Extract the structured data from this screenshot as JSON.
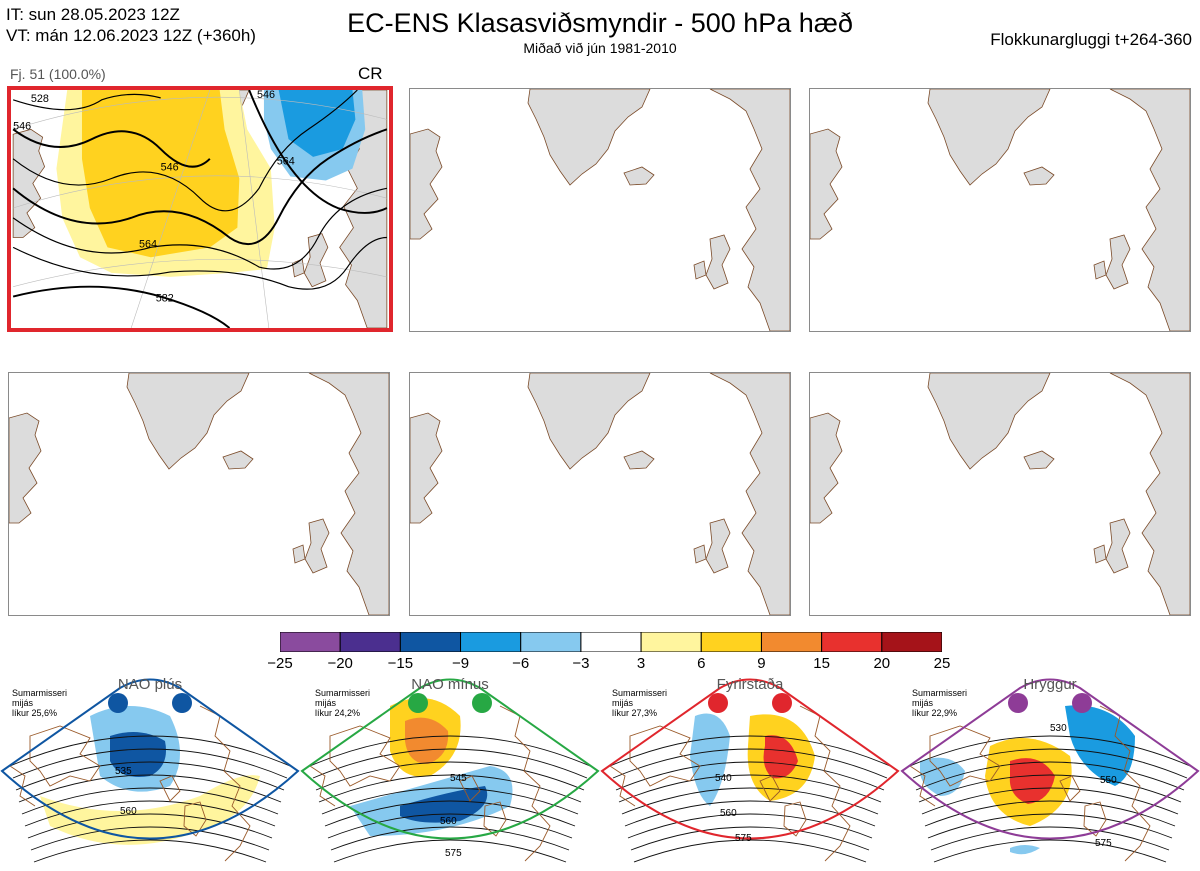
{
  "header": {
    "issue_time": "IT: sun 28.05.2023 12Z",
    "valid_time": "VT: mán 12.06.2023 12Z  (+360h)",
    "title": "EC-ENS Klasasviðsmyndir - 500 hPa hæð",
    "subtitle": "Miðað við jún 1981-2010",
    "window": "Flokkunargluggi t+264-360"
  },
  "cluster": {
    "label": "Fj. 51 (100.0%)",
    "regime_code": "CR",
    "contour_labels": [
      "528",
      "546",
      "546",
      "546",
      "564",
      "564",
      "582"
    ]
  },
  "colorbar": {
    "ticks": [
      "−25",
      "−20",
      "−15",
      "−9",
      "−6",
      "−3",
      "3",
      "6",
      "9",
      "15",
      "20",
      "25"
    ],
    "colors": [
      "#8a4b9e",
      "#4b2f8f",
      "#0f56a2",
      "#1a9be0",
      "#86c9ef",
      "#ffffff",
      "#fff59e",
      "#ffd21f",
      "#f28a2f",
      "#e8312e",
      "#a51319"
    ]
  },
  "regimes": [
    {
      "name": "NAO plús",
      "info_line1": "Sumarmisseri",
      "info_line2": "mijás",
      "info_line3": "líkur 25,6%",
      "color": "#0f56a2",
      "labels": [
        "535",
        "560"
      ]
    },
    {
      "name": "NAO mínus",
      "info_line1": "Sumarmisseri",
      "info_line2": "mijás",
      "info_line3": "líkur 24,2%",
      "color": "#27a844",
      "labels": [
        "545",
        "560",
        "575"
      ]
    },
    {
      "name": "Fyrirstaða",
      "info_line1": "Sumarmisseri",
      "info_line2": "mijás",
      "info_line3": "líkur 27,3%",
      "color": "#e0262d",
      "labels": [
        "540",
        "560",
        "575"
      ]
    },
    {
      "name": "Hryggur",
      "info_line1": "Sumarmisseri",
      "info_line2": "mijás",
      "info_line3": "líkur 22,9%",
      "color": "#8e3c97",
      "labels": [
        "530",
        "550",
        "575"
      ]
    }
  ]
}
